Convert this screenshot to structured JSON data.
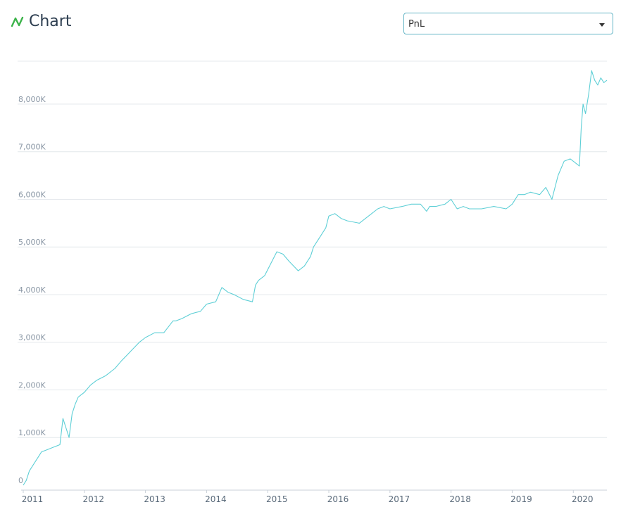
{
  "header": {
    "title": "Chart",
    "icon": "line-chart-icon",
    "icon_color": "#3cb34a"
  },
  "series_select": {
    "selected": "PnL"
  },
  "chart_data": {
    "type": "line",
    "color": "#5ecfd6",
    "grid": "horizontal",
    "ylim": [
      0,
      8900
    ],
    "xlim": [
      2011.0,
      2020.55
    ],
    "y_ticks": [
      {
        "value": 0,
        "label": "0"
      },
      {
        "value": 1000,
        "label": "1,000K"
      },
      {
        "value": 2000,
        "label": "2,000K"
      },
      {
        "value": 3000,
        "label": "3,000K"
      },
      {
        "value": 4000,
        "label": "4,000K"
      },
      {
        "value": 5000,
        "label": "5,000K"
      },
      {
        "value": 6000,
        "label": "6,000K"
      },
      {
        "value": 7000,
        "label": "7,000K"
      },
      {
        "value": 8000,
        "label": "8,000K"
      }
    ],
    "x_ticks": [
      {
        "value": 2011,
        "label": "2011"
      },
      {
        "value": 2012,
        "label": "2012"
      },
      {
        "value": 2013,
        "label": "2013"
      },
      {
        "value": 2014,
        "label": "2014"
      },
      {
        "value": 2015,
        "label": "2015"
      },
      {
        "value": 2016,
        "label": "2016"
      },
      {
        "value": 2017,
        "label": "2017"
      },
      {
        "value": 2018,
        "label": "2018"
      },
      {
        "value": 2019,
        "label": "2019"
      },
      {
        "value": 2020,
        "label": "2020"
      }
    ],
    "series": [
      {
        "x": [
          2011.0,
          2011.05,
          2011.1,
          2011.2,
          2011.3,
          2011.4,
          2011.5,
          2011.6,
          2011.65,
          2011.7,
          2011.75,
          2011.8,
          2011.85,
          2011.9,
          2012.0,
          2012.1,
          2012.2,
          2012.35,
          2012.5,
          2012.6,
          2012.75,
          2012.9,
          2013.0,
          2013.15,
          2013.3,
          2013.45,
          2013.5,
          2013.6,
          2013.75,
          2013.9,
          2014.0,
          2014.15,
          2014.25,
          2014.35,
          2014.45,
          2014.6,
          2014.75,
          2014.8,
          2014.85,
          2014.95,
          2015.05,
          2015.15,
          2015.25,
          2015.35,
          2015.5,
          2015.6,
          2015.7,
          2015.75,
          2015.85,
          2015.95,
          2016.0,
          2016.1,
          2016.15,
          2016.2,
          2016.3,
          2016.5,
          2016.7,
          2016.8,
          2016.9,
          2017.0,
          2017.2,
          2017.35,
          2017.5,
          2017.6,
          2017.65,
          2017.75,
          2017.9,
          2018.0,
          2018.1,
          2018.2,
          2018.3,
          2018.5,
          2018.7,
          2018.9,
          2019.0,
          2019.1,
          2019.2,
          2019.3,
          2019.45,
          2019.55,
          2019.65,
          2019.75,
          2019.85,
          2019.95,
          2020.0,
          2020.1,
          2020.13,
          2020.16,
          2020.2,
          2020.25,
          2020.3,
          2020.35,
          2020.4,
          2020.45,
          2020.5,
          2020.55
        ],
        "y": [
          0,
          100,
          300,
          500,
          700,
          750,
          800,
          850,
          1400,
          1200,
          1000,
          1500,
          1700,
          1850,
          1950,
          2100,
          2200,
          2300,
          2450,
          2600,
          2800,
          3000,
          3100,
          3200,
          3200,
          3450,
          3450,
          3500,
          3600,
          3650,
          3800,
          3850,
          4150,
          4050,
          4000,
          3900,
          3850,
          4200,
          4300,
          4400,
          4650,
          4900,
          4850,
          4700,
          4500,
          4600,
          4800,
          5000,
          5200,
          5400,
          5650,
          5700,
          5650,
          5600,
          5550,
          5500,
          5700,
          5800,
          5850,
          5800,
          5850,
          5900,
          5900,
          5750,
          5850,
          5850,
          5900,
          6000,
          5800,
          5850,
          5800,
          5800,
          5850,
          5800,
          5900,
          6100,
          6100,
          6150,
          6100,
          6250,
          6000,
          6500,
          6800,
          6850,
          6800,
          6700,
          7500,
          8000,
          7800,
          8200,
          8700,
          8500,
          8400,
          8550,
          8450,
          8500
        ]
      }
    ]
  }
}
